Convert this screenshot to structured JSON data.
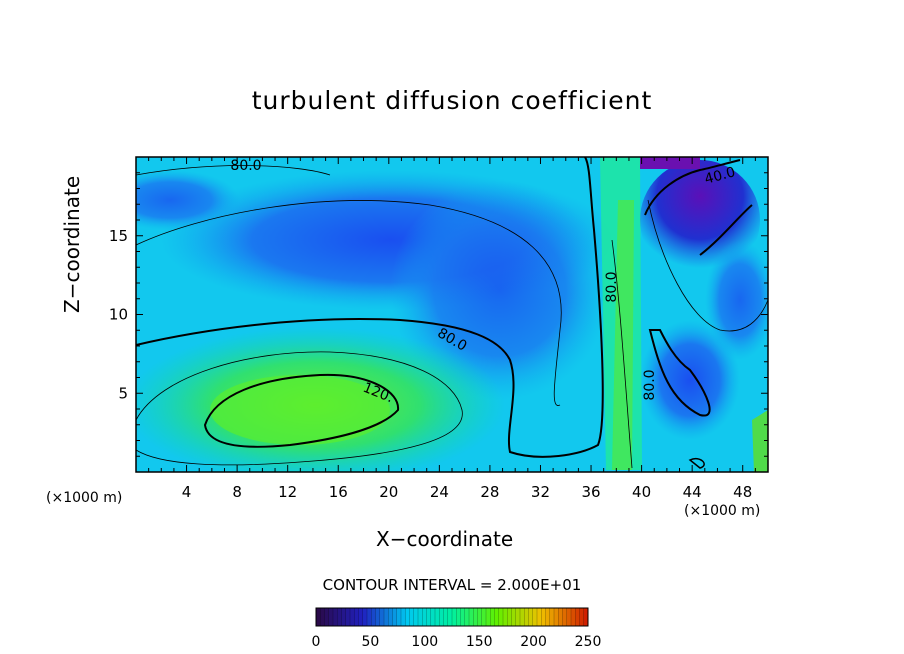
{
  "chart_data": {
    "type": "heatmap",
    "title": "turbulent diffusion coefficient",
    "xlabel": "X−coordinate",
    "ylabel": "Z−coordinate",
    "x_unit_left": "(×1000 m)",
    "x_unit_right": "(×1000 m)",
    "xlim": [
      0,
      50
    ],
    "ylim": [
      0,
      20
    ],
    "xticks": [
      4,
      8,
      12,
      16,
      20,
      24,
      28,
      32,
      36,
      40,
      44,
      48
    ],
    "yticks": [
      5,
      10,
      15
    ],
    "contour_interval_text": "CONTOUR INTERVAL = 2.000E+01",
    "contour_labels": [
      "80.0",
      "80.0",
      "120.",
      "80.0",
      "80.0",
      "40.0"
    ],
    "colorbar": {
      "min": 0,
      "max": 250,
      "tick_labels": [
        "0",
        "50",
        "100",
        "150",
        "200",
        "250"
      ],
      "colors": [
        "#2a0a4a",
        "#2020c0",
        "#00c8f0",
        "#00f0a0",
        "#60f000",
        "#f0c000",
        "#d02000"
      ]
    }
  }
}
